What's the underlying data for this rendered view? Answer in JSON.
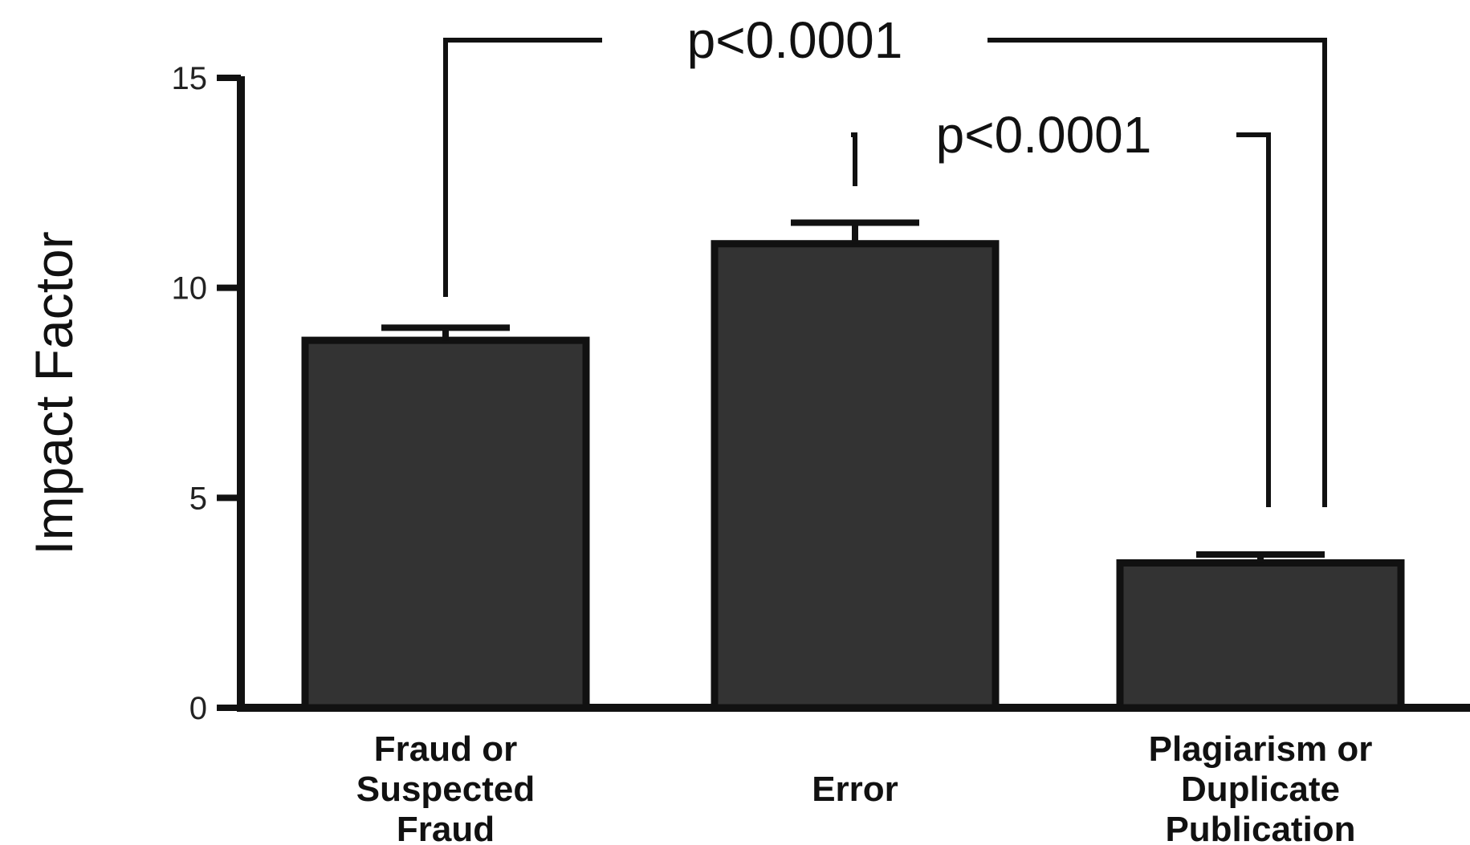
{
  "chart_data": {
    "type": "bar",
    "title": "",
    "xlabel": "",
    "ylabel": "Impact Factor",
    "ylim": [
      0,
      15
    ],
    "yticks": [
      0,
      5,
      10,
      15
    ],
    "grid": false,
    "bar_color": "#333333",
    "categories": [
      [
        "Fraud or",
        "Suspected",
        "Fraud"
      ],
      [
        "Error"
      ],
      [
        "Plagiarism or",
        "Duplicate",
        "Publication"
      ]
    ],
    "values": [
      8.75,
      11.05,
      3.45
    ],
    "error_upper": [
      9.05,
      11.55,
      3.65
    ],
    "comparisons": [
      {
        "from": 0,
        "to": 2,
        "label": "p<0.0001"
      },
      {
        "from": 1,
        "to": 2,
        "label": "p<0.0001"
      }
    ]
  }
}
